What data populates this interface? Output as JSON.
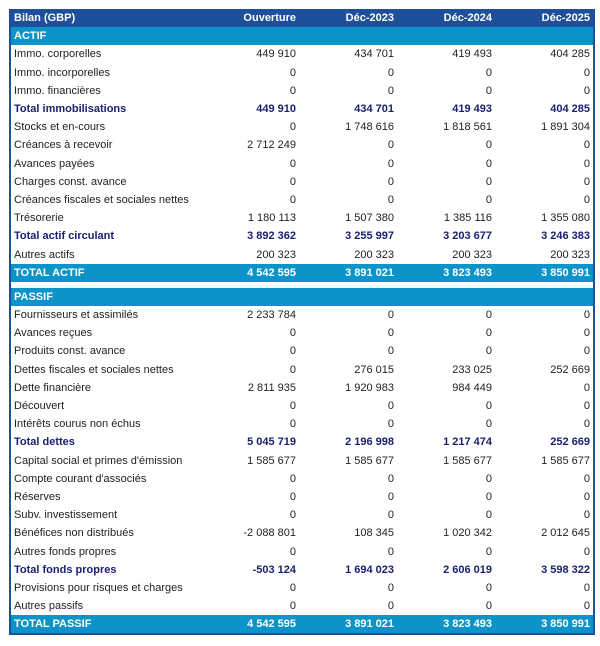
{
  "header": {
    "title": "Bilan (GBP)",
    "columns": [
      "Ouverture",
      "Déc-2023",
      "Déc-2024",
      "Déc-2025"
    ]
  },
  "colors": {
    "header": "#1d4f9a",
    "section": "#0c94c8",
    "subtotal_text": "#1a2170"
  },
  "rows": [
    {
      "type": "section",
      "label": "ACTIF",
      "values": []
    },
    {
      "type": "row",
      "label": "Immo. corporelles",
      "values": [
        "449 910",
        "434 701",
        "419 493",
        "404 285"
      ]
    },
    {
      "type": "row",
      "label": "Immo. incorporelles",
      "values": [
        "0",
        "0",
        "0",
        "0"
      ]
    },
    {
      "type": "row",
      "label": "Immo. financières",
      "values": [
        "0",
        "0",
        "0",
        "0"
      ]
    },
    {
      "type": "subtotal",
      "label": "Total immobilisations",
      "values": [
        "449 910",
        "434 701",
        "419 493",
        "404 285"
      ]
    },
    {
      "type": "row",
      "label": "Stocks et en-cours",
      "values": [
        "0",
        "1 748 616",
        "1 818 561",
        "1 891 304"
      ]
    },
    {
      "type": "row",
      "label": "Créances à recevoir",
      "values": [
        "2 712 249",
        "0",
        "0",
        "0"
      ]
    },
    {
      "type": "row",
      "label": "Avances payées",
      "values": [
        "0",
        "0",
        "0",
        "0"
      ]
    },
    {
      "type": "row",
      "label": "Charges const. avance",
      "values": [
        "0",
        "0",
        "0",
        "0"
      ]
    },
    {
      "type": "row",
      "label": "Créances fiscales et sociales nettes",
      "values": [
        "0",
        "0",
        "0",
        "0"
      ]
    },
    {
      "type": "row",
      "label": "Trésorerie",
      "values": [
        "1 180 113",
        "1 507 380",
        "1 385 116",
        "1 355 080"
      ]
    },
    {
      "type": "subtotal",
      "label": "Total actif circulant",
      "values": [
        "3 892 362",
        "3 255 997",
        "3 203 677",
        "3 246 383"
      ]
    },
    {
      "type": "row",
      "label": "Autres actifs",
      "values": [
        "200 323",
        "200 323",
        "200 323",
        "200 323"
      ]
    },
    {
      "type": "grand",
      "label": "TOTAL ACTIF",
      "values": [
        "4 542 595",
        "3 891 021",
        "3 823 493",
        "3 850 991"
      ]
    },
    {
      "type": "spacer",
      "label": "",
      "values": []
    },
    {
      "type": "section",
      "label": "PASSIF",
      "values": []
    },
    {
      "type": "row",
      "label": "Fournisseurs et assimilés",
      "values": [
        "2 233 784",
        "0",
        "0",
        "0"
      ]
    },
    {
      "type": "row",
      "label": "Avances reçues",
      "values": [
        "0",
        "0",
        "0",
        "0"
      ]
    },
    {
      "type": "row",
      "label": "Produits const. avance",
      "values": [
        "0",
        "0",
        "0",
        "0"
      ]
    },
    {
      "type": "row",
      "label": "Dettes fiscales et sociales nettes",
      "values": [
        "0",
        "276 015",
        "233 025",
        "252 669"
      ]
    },
    {
      "type": "row",
      "label": "Dette financière",
      "values": [
        "2 811 935",
        "1 920 983",
        "984 449",
        "0"
      ]
    },
    {
      "type": "row",
      "label": "Découvert",
      "values": [
        "0",
        "0",
        "0",
        "0"
      ]
    },
    {
      "type": "row",
      "label": "Intérêts courus non échus",
      "values": [
        "0",
        "0",
        "0",
        "0"
      ]
    },
    {
      "type": "subtotal",
      "label": "Total dettes",
      "values": [
        "5 045 719",
        "2 196 998",
        "1 217 474",
        "252 669"
      ]
    },
    {
      "type": "row",
      "label": "Capital social et primes d'émission",
      "values": [
        "1 585 677",
        "1 585 677",
        "1 585 677",
        "1 585 677"
      ]
    },
    {
      "type": "row",
      "label": "Compte courant d'associés",
      "values": [
        "0",
        "0",
        "0",
        "0"
      ]
    },
    {
      "type": "row",
      "label": "Réserves",
      "values": [
        "0",
        "0",
        "0",
        "0"
      ]
    },
    {
      "type": "row",
      "label": "Subv. investissement",
      "values": [
        "0",
        "0",
        "0",
        "0"
      ]
    },
    {
      "type": "row",
      "label": "Bénéfices non distribués",
      "values": [
        "-2 088 801",
        "108 345",
        "1 020 342",
        "2 012 645"
      ]
    },
    {
      "type": "row",
      "label": "Autres fonds propres",
      "values": [
        "0",
        "0",
        "0",
        "0"
      ]
    },
    {
      "type": "subtotal",
      "label": "Total fonds propres",
      "values": [
        "-503 124",
        "1 694 023",
        "2 606 019",
        "3 598 322"
      ]
    },
    {
      "type": "row",
      "label": "Provisions pour risques et charges",
      "values": [
        "0",
        "0",
        "0",
        "0"
      ]
    },
    {
      "type": "row",
      "label": "Autres passifs",
      "values": [
        "0",
        "0",
        "0",
        "0"
      ]
    },
    {
      "type": "grand",
      "label": "TOTAL PASSIF",
      "values": [
        "4 542 595",
        "3 891 021",
        "3 823 493",
        "3 850 991"
      ]
    }
  ]
}
